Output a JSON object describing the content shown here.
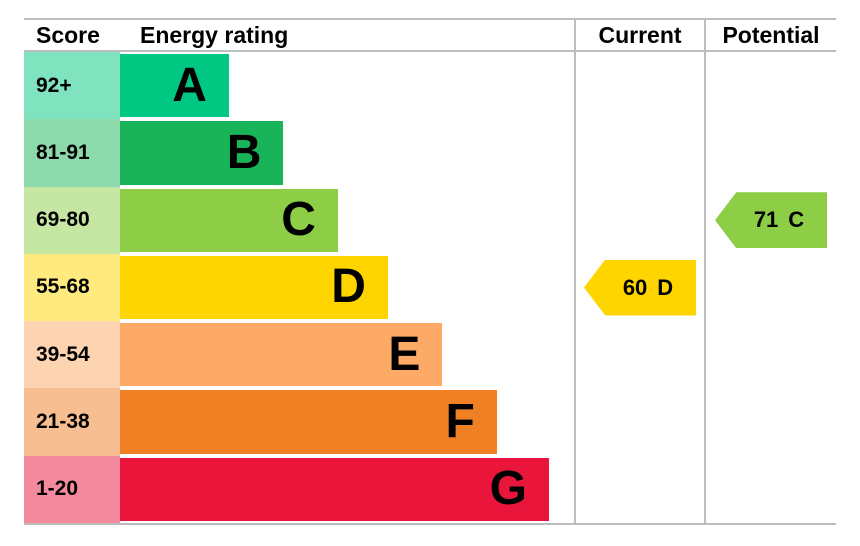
{
  "header": {
    "score": "Score",
    "energy_rating": "Energy rating",
    "current": "Current",
    "potential": "Potential"
  },
  "bands": [
    {
      "score": "92+",
      "letter": "A",
      "bar_color": "#00c781",
      "score_color": "#7fe3c0",
      "width_pct": 24
    },
    {
      "score": "81-91",
      "letter": "B",
      "bar_color": "#19b459",
      "score_color": "#8cd9ac",
      "width_pct": 36
    },
    {
      "score": "69-80",
      "letter": "C",
      "bar_color": "#8dce46",
      "score_color": "#c6e7a3",
      "width_pct": 48
    },
    {
      "score": "55-68",
      "letter": "D",
      "bar_color": "#ffd500",
      "score_color": "#ffea80",
      "width_pct": 59
    },
    {
      "score": "39-54",
      "letter": "E",
      "bar_color": "#fcaa65",
      "score_color": "#fdd4b2",
      "width_pct": 71
    },
    {
      "score": "21-38",
      "letter": "F",
      "bar_color": "#ef8023",
      "score_color": "#f7bf91",
      "width_pct": 83
    },
    {
      "score": "1-20",
      "letter": "G",
      "bar_color": "#e9153b",
      "score_color": "#f48a9d",
      "width_pct": 94.5
    }
  ],
  "current": {
    "value": "60",
    "letter": "D",
    "color": "#ffd500",
    "band_index": 3
  },
  "potential": {
    "value": "71",
    "letter": "C",
    "color": "#8dce46",
    "band_index": 2
  },
  "chart_data": {
    "type": "bar",
    "orientation": "horizontal",
    "title": "Energy rating",
    "categories": [
      "A",
      "B",
      "C",
      "D",
      "E",
      "F",
      "G"
    ],
    "score_ranges": [
      "92+",
      "81-91",
      "69-80",
      "55-68",
      "39-54",
      "21-38",
      "1-20"
    ],
    "bar_relative_widths_pct": [
      24,
      36,
      48,
      59,
      71,
      83,
      94.5
    ],
    "markers": [
      {
        "name": "Current",
        "value": 60,
        "band": "D"
      },
      {
        "name": "Potential",
        "value": 71,
        "band": "C"
      }
    ],
    "legend_position": "none",
    "grid": false
  }
}
